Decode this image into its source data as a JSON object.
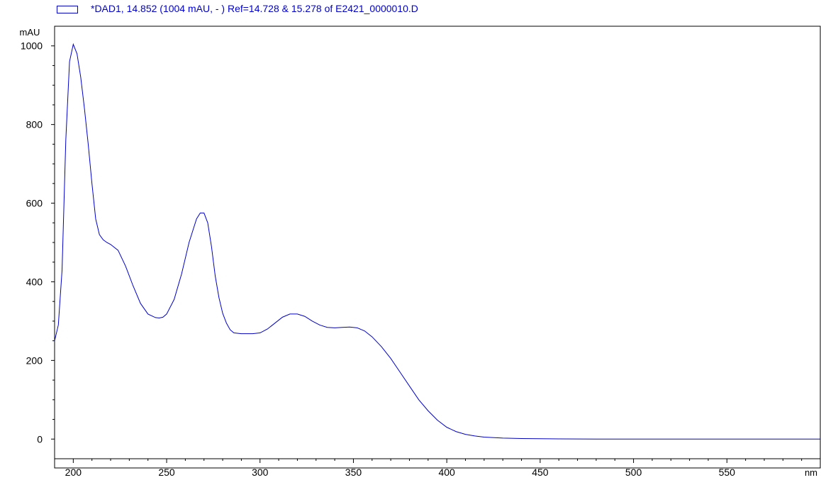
{
  "legend": {
    "label": "*DAD1, 14.852 (1004 mAU, - ) Ref=14.728 & 15.278 of E2421_0000010.D",
    "swatch_color": "#0000cc"
  },
  "chart_data": {
    "type": "line",
    "title": "",
    "xlabel": "nm",
    "ylabel": "mAU",
    "xlim": [
      190,
      600
    ],
    "ylim": [
      -50,
      1050
    ],
    "x_ticks": [
      200,
      250,
      300,
      350,
      400,
      450,
      500,
      550
    ],
    "y_ticks": [
      0,
      200,
      400,
      600,
      800,
      1000
    ],
    "grid": false,
    "line_color": "#0000cc",
    "series": [
      {
        "x": [
          190,
          192,
          194,
          196,
          198,
          200,
          202,
          204,
          206,
          208,
          210,
          212,
          214,
          216,
          218,
          220,
          224,
          228,
          232,
          236,
          240,
          244,
          246,
          248,
          250,
          254,
          258,
          262,
          266,
          268,
          270,
          272,
          274,
          276,
          278,
          280,
          282,
          284,
          286,
          290,
          296,
          300,
          304,
          308,
          312,
          316,
          320,
          324,
          328,
          332,
          336,
          340,
          344,
          348,
          352,
          356,
          360,
          365,
          370,
          375,
          380,
          385,
          390,
          395,
          400,
          405,
          410,
          415,
          420,
          430,
          440,
          450,
          460,
          480,
          500,
          550,
          600
        ],
        "y": [
          250,
          290,
          430,
          760,
          960,
          1004,
          980,
          920,
          840,
          750,
          650,
          560,
          520,
          507,
          500,
          495,
          480,
          440,
          390,
          345,
          318,
          309,
          308,
          310,
          318,
          355,
          420,
          500,
          560,
          575,
          575,
          550,
          490,
          415,
          360,
          320,
          295,
          278,
          270,
          268,
          268,
          270,
          280,
          295,
          310,
          318,
          318,
          312,
          300,
          290,
          284,
          283,
          284,
          285,
          283,
          275,
          260,
          235,
          205,
          170,
          135,
          100,
          72,
          48,
          30,
          19,
          12,
          8,
          5,
          2.5,
          1.5,
          1,
          0.5,
          0,
          0,
          0,
          0
        ]
      }
    ]
  }
}
